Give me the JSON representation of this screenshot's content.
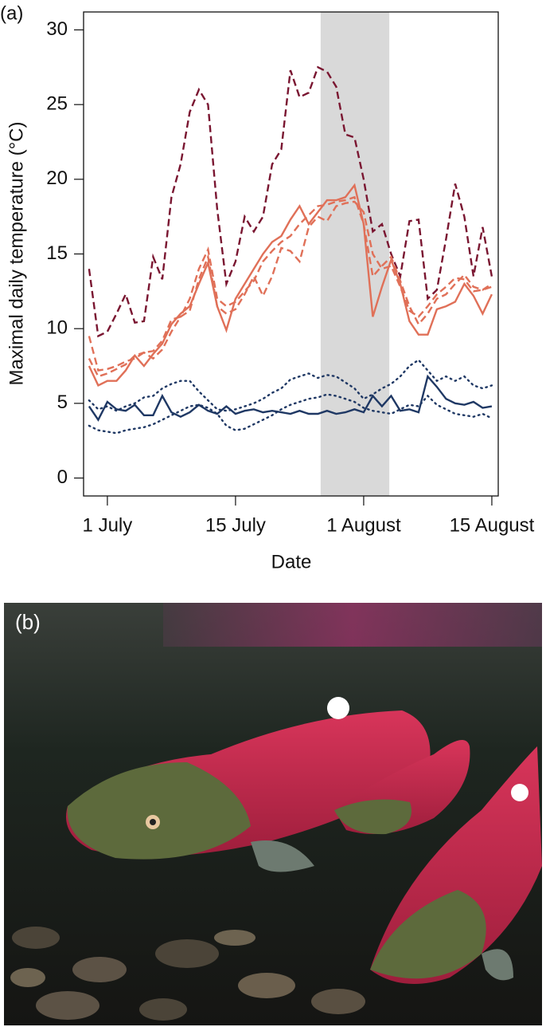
{
  "panel_labels": [
    "(a)",
    "(b)"
  ],
  "chart_data": {
    "type": "line",
    "xlabel": "Date",
    "ylabel": "Maximal daily temperature (°C)",
    "x": [
      -2,
      -1,
      0,
      1,
      2,
      3,
      4,
      5,
      6,
      7,
      8,
      9,
      10,
      11,
      12,
      13,
      14,
      15,
      16,
      17,
      18,
      19,
      20,
      21,
      22,
      23,
      24,
      25,
      26,
      27,
      28,
      29,
      30,
      31,
      32,
      33,
      34,
      35,
      36,
      37,
      38,
      39,
      40,
      41,
      42
    ],
    "xlim": [
      -2.6,
      42.7
    ],
    "xticks": [
      {
        "value": 0,
        "label": "1 July"
      },
      {
        "value": 14,
        "label": "15 July"
      },
      {
        "value": 28,
        "label": "1 August"
      },
      {
        "value": 42,
        "label": "15 August"
      }
    ],
    "ylim": [
      -1.2,
      31.2
    ],
    "yticks": [
      0,
      5,
      10,
      15,
      20,
      25,
      30
    ],
    "shaded_x": [
      23.3,
      30.8
    ],
    "shade_color": "#d9d9d9",
    "series": [
      {
        "color": "#7a1631",
        "dash": "dashed",
        "values": [
          14,
          9.5,
          9.8,
          11,
          12.3,
          10.4,
          10.5,
          14.8,
          13.3,
          18.8,
          21,
          24.5,
          26,
          25,
          18,
          13,
          14.5,
          17.5,
          16.5,
          17.5,
          21,
          22,
          27.3,
          25.5,
          25.8,
          27.5,
          27.2,
          26.2,
          23,
          22.8,
          20,
          16.5,
          17,
          15,
          13.5,
          17.2,
          17.3,
          12,
          12.6,
          16,
          19.7,
          17.5,
          13.5,
          16.8,
          13.5
        ]
      },
      {
        "color": "#e07058",
        "dash": "solid",
        "values": [
          7.5,
          6.2,
          6.5,
          6.5,
          7.2,
          8.2,
          7.5,
          8.3,
          9,
          10.3,
          11,
          11.5,
          13,
          14.4,
          11.5,
          9.9,
          12,
          13,
          14,
          15,
          15.8,
          16.2,
          17.3,
          18.2,
          17,
          17.8,
          18.6,
          18.6,
          18.8,
          19.6,
          17,
          10.8,
          12.8,
          14.6,
          13,
          10.5,
          9.6,
          9.6,
          11.3,
          11.5,
          11.8,
          13,
          12.2,
          11,
          12.3
        ]
      },
      {
        "color": "#e07058",
        "dash": "dashed",
        "values": [
          9.5,
          7.2,
          7.3,
          7.5,
          7.8,
          8,
          8.4,
          8.5,
          9.2,
          10.6,
          10.8,
          12,
          14,
          15.3,
          12,
          11.5,
          11.8,
          12.5,
          13.2,
          14.5,
          15.2,
          15.8,
          16.2,
          17,
          17.6,
          18.2,
          18.3,
          18.5,
          18.6,
          18.8,
          17,
          13.5,
          14.2,
          14.8,
          13.2,
          11.5,
          10.3,
          11,
          12,
          12.3,
          13,
          13.6,
          12.8,
          12.6,
          13
        ]
      },
      {
        "color": "#e07058",
        "dash": "dashed",
        "values": [
          8,
          6.8,
          7,
          7.3,
          7.6,
          8.2,
          8.4,
          8,
          8.6,
          9.8,
          10.8,
          11.2,
          13.3,
          14.8,
          11.5,
          11,
          11.3,
          12.3,
          13.5,
          12.2,
          13.5,
          15.4,
          15.2,
          14.5,
          16.8,
          17.5,
          17.2,
          18.2,
          18.4,
          18.5,
          17.8,
          15,
          14,
          14.2,
          12.8,
          11.2,
          10.8,
          11.5,
          12.3,
          12.8,
          13.4,
          13.3,
          12.5,
          12.6,
          12.8
        ]
      },
      {
        "color": "#1f3864",
        "dash": "solid",
        "values": [
          4.8,
          3.9,
          5.1,
          4.6,
          4.5,
          4.9,
          4.2,
          4.2,
          5.5,
          4.4,
          4.1,
          4.4,
          4.9,
          4.5,
          4.3,
          4.8,
          4.3,
          4.5,
          4.6,
          4.4,
          4.5,
          4.4,
          4.3,
          4.5,
          4.3,
          4.3,
          4.5,
          4.3,
          4.4,
          4.6,
          4.4,
          5.5,
          4.8,
          5.5,
          4.5,
          4.6,
          4.4,
          6.8,
          6.1,
          5.3,
          5,
          4.9,
          5.1,
          4.7,
          4.8
        ]
      },
      {
        "color": "#1f3864",
        "dash": "dotted",
        "values": [
          5.2,
          4.6,
          4.8,
          4.5,
          4.8,
          5,
          5.4,
          5.5,
          6,
          6.3,
          6.5,
          6.5,
          5.8,
          5.2,
          4.6,
          4.5,
          4.6,
          4.8,
          5,
          5.3,
          5.7,
          6,
          6.6,
          6.8,
          7,
          6.7,
          6.9,
          6.8,
          6.4,
          6,
          5.3,
          5.6,
          6,
          6.3,
          6.8,
          7.5,
          7.9,
          7.2,
          6.5,
          6.8,
          6.5,
          6.8,
          6.2,
          6,
          6.2
        ]
      },
      {
        "color": "#1f3864",
        "dash": "dotted",
        "values": [
          3.5,
          3.2,
          3.1,
          3,
          3.2,
          3.3,
          3.4,
          3.6,
          3.9,
          4.2,
          4.5,
          4.8,
          4.9,
          4.7,
          4.3,
          3.5,
          3.2,
          3.3,
          3.6,
          3.9,
          4.2,
          4.6,
          4.9,
          5.1,
          5.3,
          5.4,
          5.6,
          5.5,
          5.3,
          5.1,
          4.7,
          4.5,
          4.4,
          4.3,
          4.6,
          4.9,
          4.8,
          5.5,
          4.9,
          4.6,
          4.3,
          4.2,
          4.1,
          4.3,
          4
        ]
      }
    ]
  }
}
